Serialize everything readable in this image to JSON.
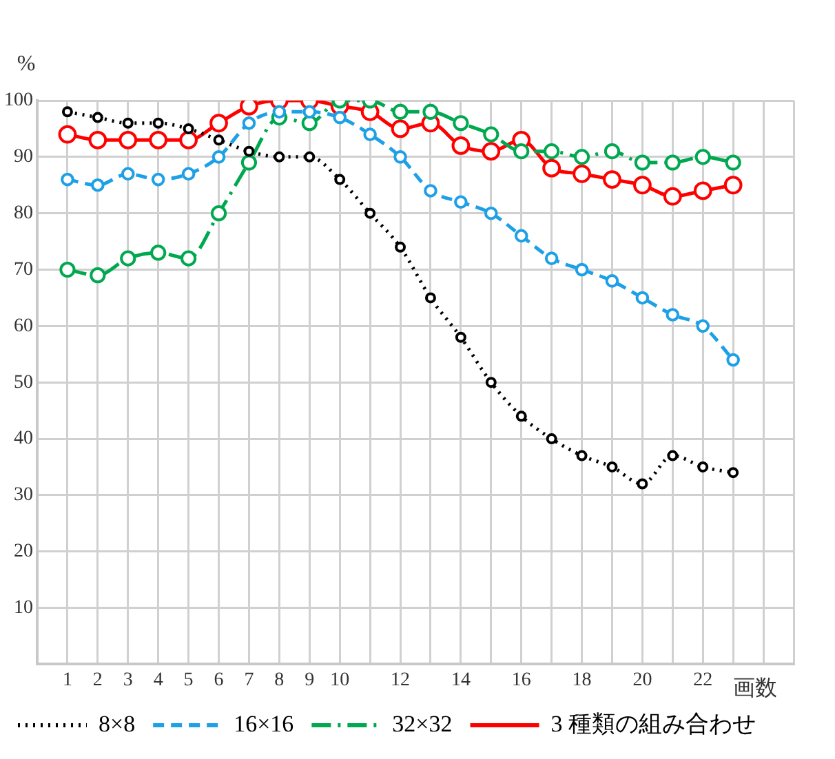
{
  "chart_data": {
    "type": "line",
    "xlabel": "画数",
    "ylabel": "%",
    "x": [
      1,
      2,
      3,
      4,
      5,
      6,
      7,
      8,
      9,
      10,
      11,
      12,
      13,
      14,
      15,
      16,
      17,
      18,
      19,
      20,
      21,
      22,
      23
    ],
    "xlim": [
      0,
      25
    ],
    "xticks": [
      1,
      2,
      3,
      4,
      5,
      6,
      7,
      8,
      9,
      10,
      {
        "value": 11,
        "label": null
      },
      12,
      {
        "value": 13,
        "label": null
      },
      14,
      {
        "value": 15,
        "label": null
      },
      16,
      {
        "value": 17,
        "label": null
      },
      18,
      {
        "value": 19,
        "label": null
      },
      20,
      {
        "value": 21,
        "label": null
      },
      22,
      {
        "value": 23,
        "label": null
      },
      {
        "value": 24,
        "label": null
      },
      {
        "value": 25,
        "label": null
      }
    ],
    "ylim": [
      0,
      100
    ],
    "yticks": [
      {
        "value": 0,
        "label": null
      },
      10,
      20,
      30,
      40,
      50,
      60,
      70,
      80,
      90,
      100
    ],
    "grid": true,
    "legend": "bottom",
    "marker": "circle",
    "series": [
      {
        "name": "8×8",
        "color": "#000000",
        "line_style": "dotted",
        "values": [
          98,
          97,
          96,
          96,
          95,
          93,
          91,
          90,
          90,
          86,
          80,
          74,
          65,
          58,
          50,
          44,
          40,
          37,
          35,
          32,
          37,
          35,
          34
        ]
      },
      {
        "name": "16×16",
        "color": "#1ea0e6",
        "line_style": "dashed",
        "values": [
          86,
          85,
          87,
          86,
          87,
          90,
          96,
          98,
          98,
          97,
          94,
          90,
          84,
          82,
          80,
          76,
          72,
          70,
          68,
          65,
          62,
          60,
          54
        ]
      },
      {
        "name": "32×32",
        "color": "#00a84f",
        "line_style": "dashdot",
        "values": [
          70,
          69,
          72,
          73,
          72,
          80,
          89,
          97,
          96,
          100,
          100,
          98,
          98,
          96,
          94,
          91,
          91,
          90,
          91,
          89,
          89,
          90,
          89
        ]
      },
      {
        "name": "3 種類の組み合わせ",
        "color": "#ff0000",
        "line_style": "solid",
        "values": [
          94,
          93,
          93,
          93,
          93,
          96,
          99,
          100,
          100,
          99,
          98,
          95,
          96,
          92,
          91,
          93,
          88,
          87,
          86,
          85,
          83,
          84,
          85
        ]
      }
    ]
  }
}
